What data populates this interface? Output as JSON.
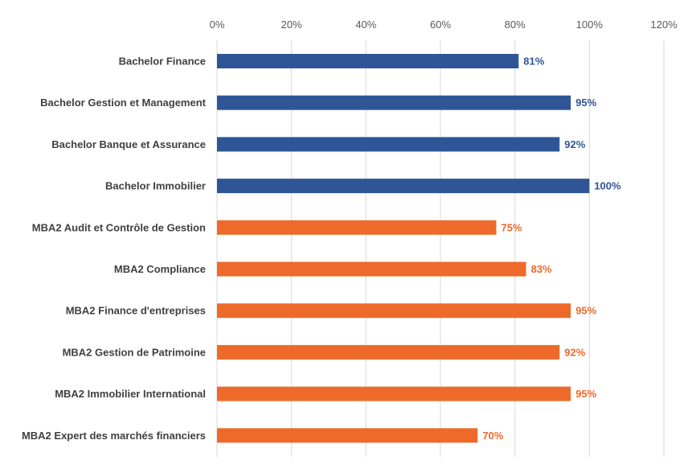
{
  "chart_data": {
    "type": "bar",
    "orientation": "horizontal",
    "title": "",
    "xlabel": "",
    "ylabel": "",
    "xlim": [
      0,
      120
    ],
    "x_ticks": [
      0,
      20,
      40,
      60,
      80,
      100,
      120
    ],
    "x_tick_labels": [
      "0%",
      "20%",
      "40%",
      "60%",
      "80%",
      "100%",
      "120%"
    ],
    "x_axis_position": "top",
    "grid": "vertical",
    "legend": "none",
    "categories": [
      "Bachelor Finance",
      "Bachelor Gestion et Management",
      "Bachelor Banque et Assurance",
      "Bachelor Immobilier",
      "MBA2 Audit et Contrôle de Gestion",
      "MBA2 Compliance",
      "MBA2 Finance d'entreprises",
      "MBA2 Gestion de Patrimoine",
      "MBA2 Immobilier International",
      "MBA2 Expert des marchés financiers"
    ],
    "values": [
      81,
      95,
      92,
      100,
      75,
      83,
      95,
      92,
      95,
      70
    ],
    "value_labels": [
      "81%",
      "95%",
      "92%",
      "100%",
      "75%",
      "83%",
      "95%",
      "92%",
      "95%",
      "70%"
    ],
    "bar_colors": [
      "#2F5597",
      "#2F5597",
      "#2F5597",
      "#2F5597",
      "#ED6A2A",
      "#ED6A2A",
      "#ED6A2A",
      "#ED6A2A",
      "#ED6A2A",
      "#ED6A2A"
    ],
    "colors": {
      "bachelor": "#2F5597",
      "mba": "#ED6A2A",
      "grid": "#D9D9D9"
    }
  }
}
